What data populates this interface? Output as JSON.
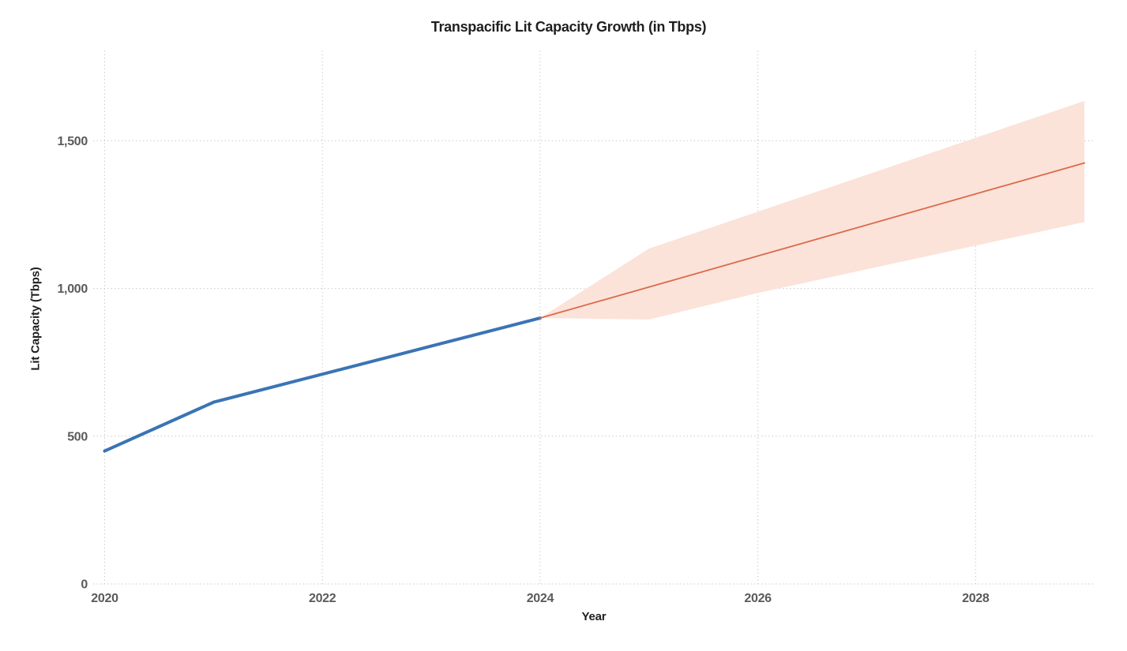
{
  "chart_data": {
    "type": "line",
    "title": "Transpacific Lit Capacity Growth (in Tbps)",
    "xlabel": "Year",
    "ylabel": "Lit Capacity (Tbps)",
    "x_ticks": [
      2020,
      2022,
      2024,
      2026,
      2028
    ],
    "x_tick_labels": [
      "2020",
      "2022",
      "2024",
      "2026",
      "2028"
    ],
    "y_ticks": [
      0,
      500,
      1000,
      1500
    ],
    "y_tick_labels": [
      "0",
      "500",
      "1,000",
      "1,500"
    ],
    "xlim": [
      2019.9,
      2029.1
    ],
    "ylim": [
      0,
      1805
    ],
    "grid": "dotted both axes, light gray",
    "legend": "none",
    "background": "#ffffff",
    "series": [
      {
        "name": "historical",
        "color": "#3a74b4",
        "line_width": 4,
        "x": [
          2020,
          2021,
          2022,
          2023,
          2024
        ],
        "y": [
          450,
          615,
          710,
          805,
          900
        ]
      },
      {
        "name": "forecast",
        "color": "#dc6a4a",
        "line_width": 1.8,
        "x": [
          2024,
          2025,
          2026,
          2027,
          2028,
          2029
        ],
        "y": [
          900,
          1005,
          1110,
          1215,
          1320,
          1425
        ]
      }
    ],
    "band": {
      "name": "forecast-uncertainty-range",
      "color": "#fbe3d9",
      "x": [
        2024,
        2025,
        2026,
        2027,
        2028,
        2029
      ],
      "upper": [
        900,
        1135,
        1260,
        1385,
        1510,
        1635
      ],
      "lower": [
        900,
        895,
        985,
        1065,
        1145,
        1225
      ]
    }
  }
}
